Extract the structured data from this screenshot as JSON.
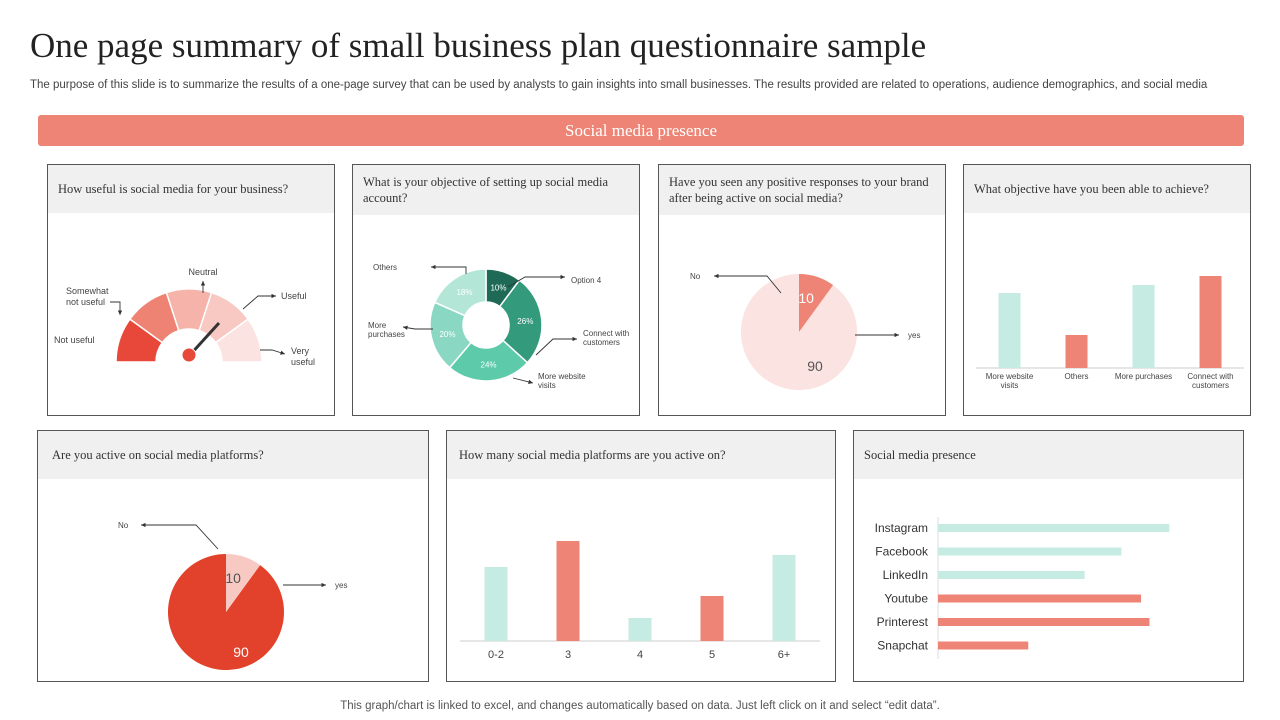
{
  "header": {
    "title": "One page summary of small business plan questionnaire sample",
    "subtitle": "The purpose of this slide is to summarize the results of a one-page survey that can be used by analysts to gain insights into small businesses. The results provided are related to operations, audience demographics, and social media",
    "banner": "Social media presence"
  },
  "cards": {
    "q1": {
      "question": "How useful is social media for your business?"
    },
    "q2": {
      "question": "What is your objective of setting up social media account?"
    },
    "q3": {
      "question": "Have you seen any positive responses to your brand after being active on social media?"
    },
    "q4": {
      "question": "What objective have you been able to achieve?"
    },
    "q5": {
      "question": "Are you active on social media platforms?"
    },
    "q6": {
      "question": "How many social media platforms are you active on?"
    },
    "q7": {
      "question": "Social media presence"
    }
  },
  "footer": {
    "text": "This graph/chart is linked to excel, and changes automatically based on data. Just left click on it and select “edit data”."
  },
  "colors": {
    "accent": "#ed8475",
    "mint": "#c5ebe2",
    "red": "#e2412b",
    "pink": "#fbe3e1"
  },
  "chart_data": [
    {
      "id": "q1",
      "type": "gauge",
      "categories": [
        "Not useful",
        "Somewhat not useful",
        "Neutral",
        "Useful",
        "Very useful"
      ],
      "colors": [
        "#e8483a",
        "#ee8273",
        "#f5b3aa",
        "#f8c9c3",
        "#fbe3e1"
      ]
    },
    {
      "id": "q2",
      "type": "pie",
      "categories": [
        "Option 4",
        "Connect with customers",
        "More website visits",
        "More purchases",
        "Others"
      ],
      "values": [
        10,
        26,
        24,
        20,
        18
      ],
      "labels": [
        "10%",
        "26%",
        "24%",
        "20%",
        "18%"
      ],
      "colors": [
        "#1e6a57",
        "#349a7c",
        "#5dcaa9",
        "#8ad8c3",
        "#b3e6d7"
      ]
    },
    {
      "id": "q3",
      "type": "pie",
      "categories": [
        "No",
        "yes"
      ],
      "values": [
        10,
        90
      ],
      "colors": [
        "#ed8475",
        "#fbe3e1"
      ]
    },
    {
      "id": "q4",
      "type": "bar",
      "categories": [
        "More website visits",
        "Others",
        "More purchases",
        "Connect with customers"
      ],
      "values": [
        75,
        33,
        83,
        92
      ],
      "ylim": [
        0,
        100
      ],
      "colors": [
        "#c5ebe2",
        "#ed8475",
        "#c5ebe2",
        "#ed8475"
      ]
    },
    {
      "id": "q5",
      "type": "pie",
      "categories": [
        "No",
        "yes"
      ],
      "values": [
        10,
        90
      ],
      "colors": [
        "#f8c9c3",
        "#e2412b"
      ]
    },
    {
      "id": "q6",
      "type": "bar",
      "categories": [
        "0-2",
        "3",
        "4",
        "5",
        "6+"
      ],
      "values": [
        74,
        100,
        23,
        45,
        86
      ],
      "ylim": [
        0,
        100
      ],
      "colors": [
        "#c5ebe2",
        "#ed8475",
        "#c5ebe2",
        "#ed8475",
        "#c5ebe2"
      ]
    },
    {
      "id": "q7",
      "type": "bar-horizontal",
      "categories": [
        "Instagram",
        "Facebook",
        "LinkedIn",
        "Youtube",
        "Printerest",
        "Snapchat"
      ],
      "values": [
        82,
        65,
        52,
        72,
        75,
        32
      ],
      "xlim": [
        0,
        100
      ],
      "colors": [
        "#c5ebe2",
        "#c5ebe2",
        "#c5ebe2",
        "#ed8475",
        "#ed8475",
        "#ed8475"
      ]
    }
  ]
}
